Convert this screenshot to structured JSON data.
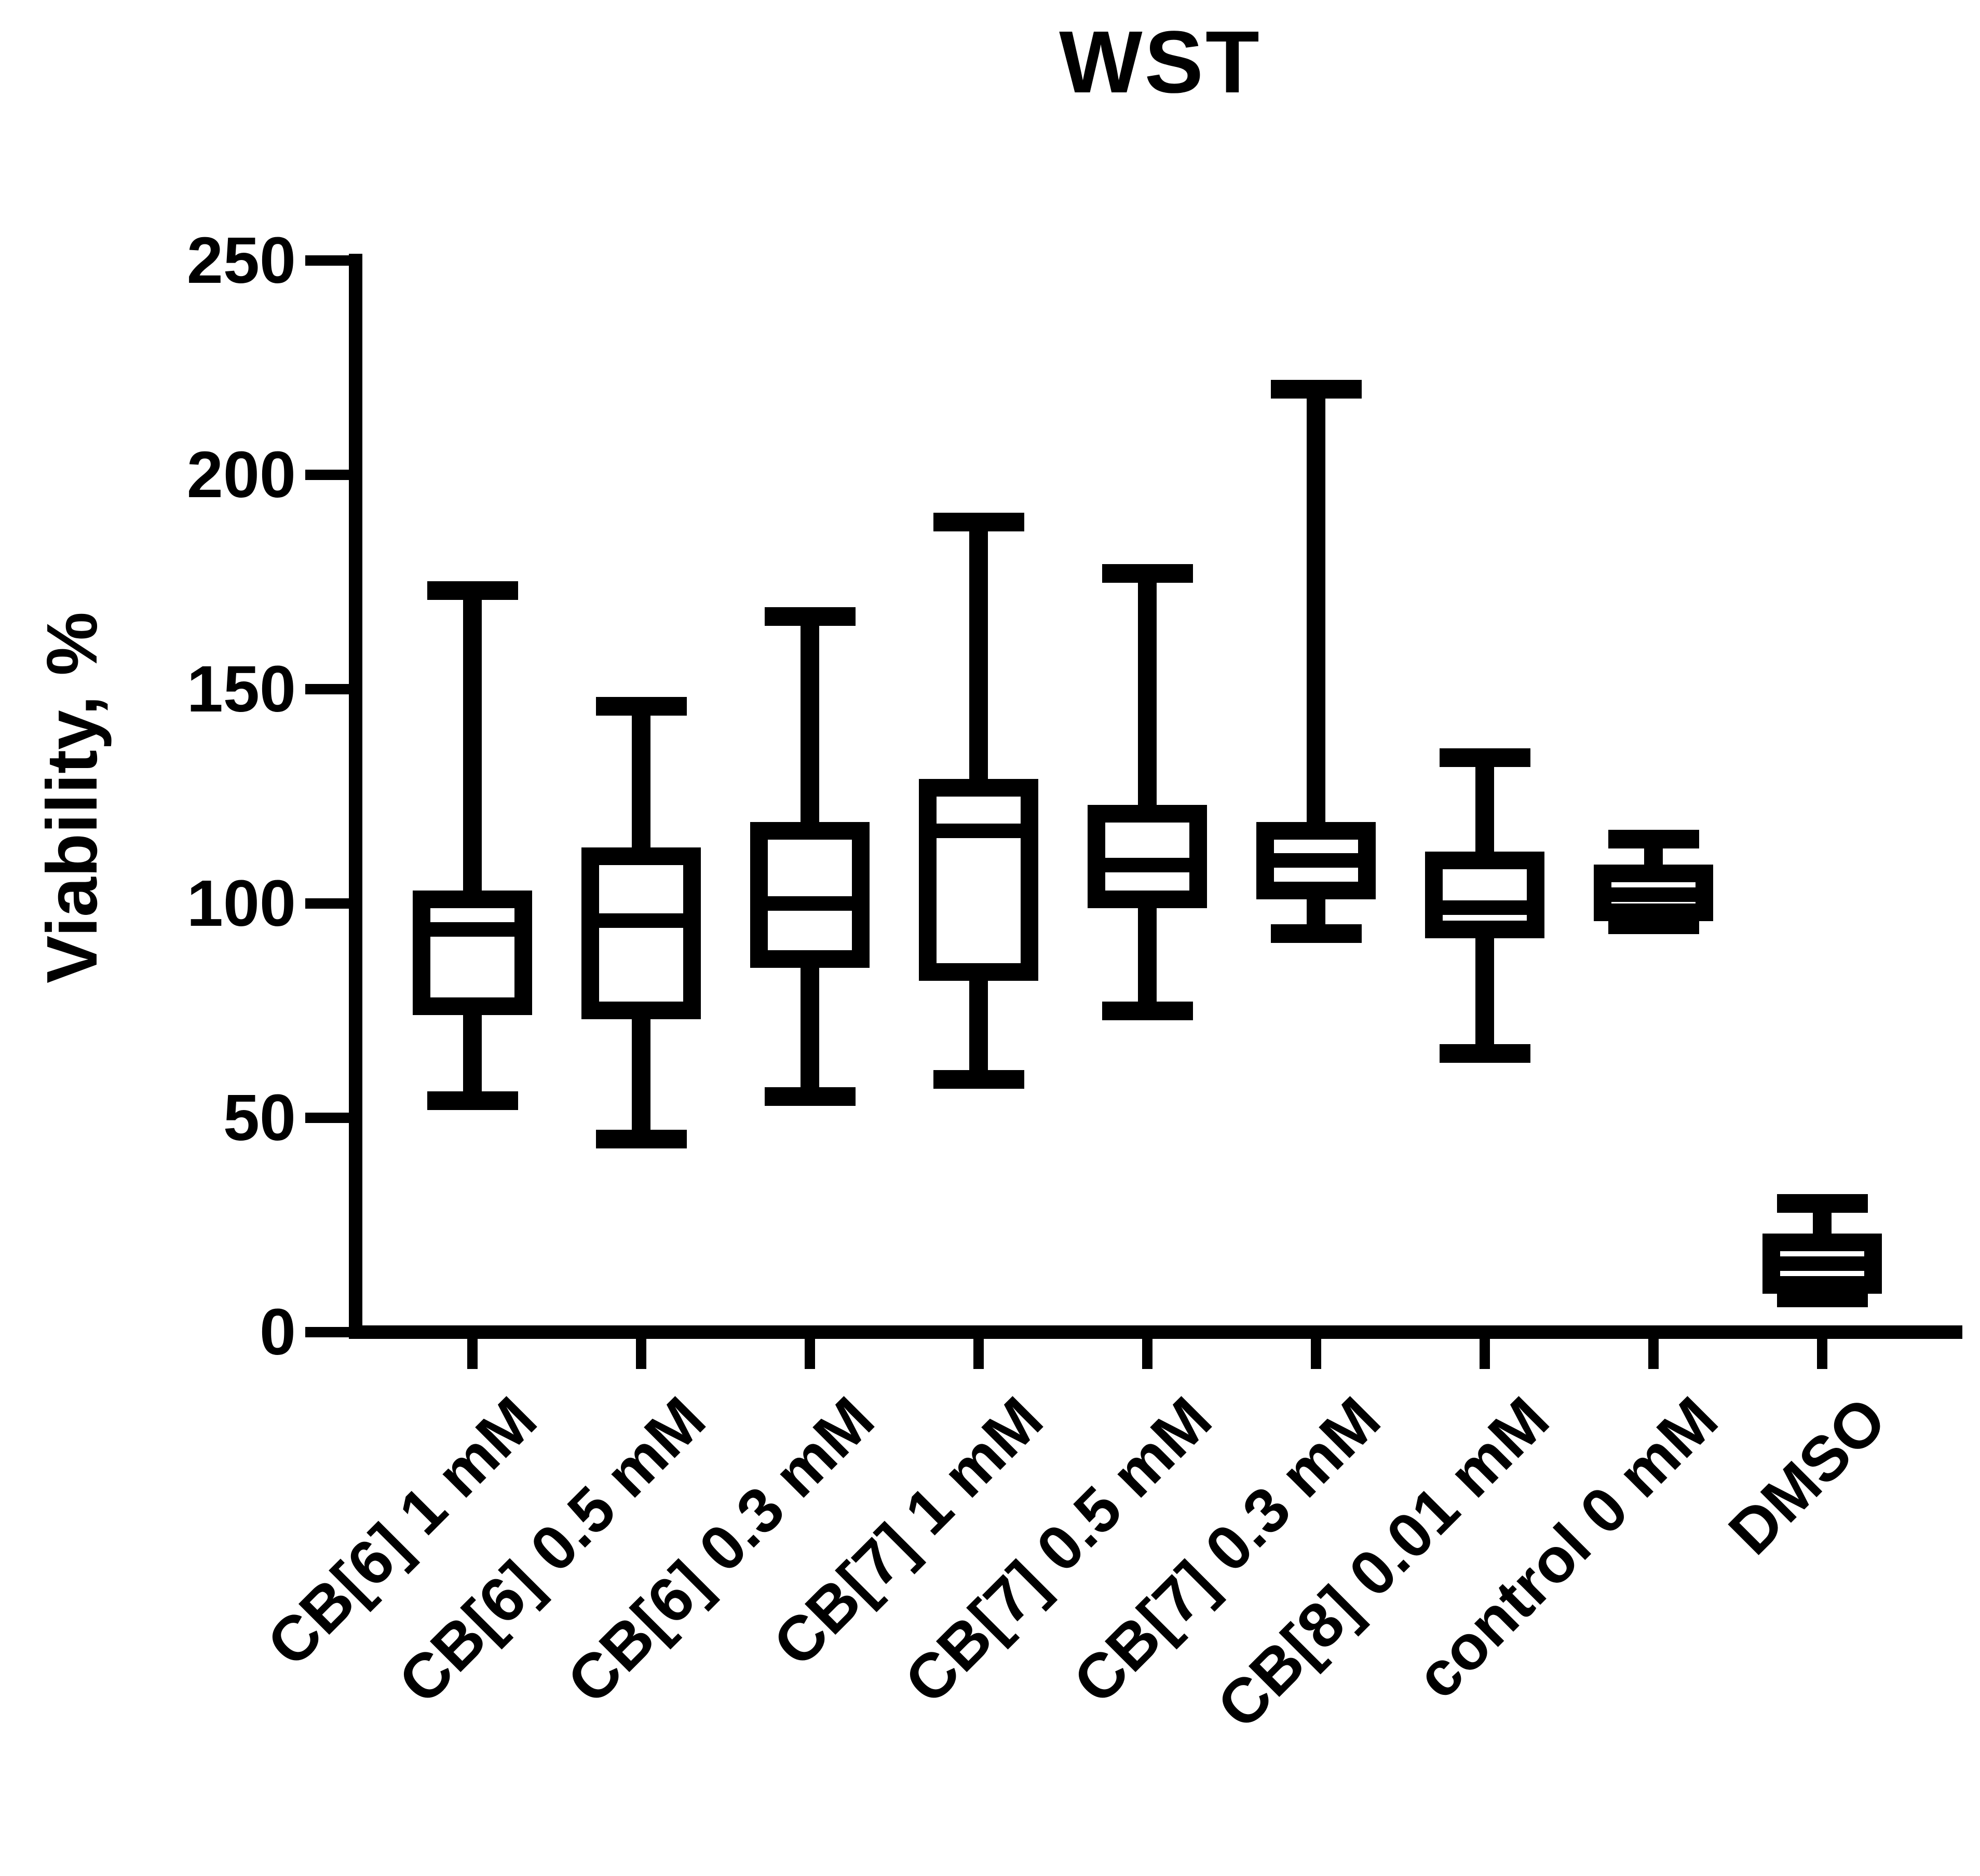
{
  "chart_data": {
    "type": "box",
    "title": "WST",
    "xlabel": "",
    "ylabel": "Viability, %",
    "ylim": [
      0,
      250
    ],
    "yticks": [
      0,
      50,
      100,
      150,
      200,
      250
    ],
    "grid": false,
    "legend": "none",
    "color": "#000000",
    "categories": [
      "CB[6] 1 mM",
      "CB[6] 0.5 mM",
      "CB[6] 0.3 mM",
      "CB[7] 1 mM",
      "CB[7] 0.5 mM",
      "CB[7] 0.3 mM",
      "CB[8] 0.01 mM",
      "control 0 mM",
      "DMSO"
    ],
    "series": [
      {
        "label": "CB[6] 1 mM",
        "min": 54,
        "q1": 76,
        "median": 94,
        "q3": 101,
        "max": 173
      },
      {
        "label": "CB[6] 0.5 mM",
        "min": 45,
        "q1": 75,
        "median": 96,
        "q3": 111,
        "max": 146
      },
      {
        "label": "CB[6] 0.3 mM",
        "min": 55,
        "q1": 87,
        "median": 100,
        "q3": 117,
        "max": 167
      },
      {
        "label": "CB[7] 1 mM",
        "min": 59,
        "q1": 84,
        "median": 117,
        "q3": 127,
        "max": 189
      },
      {
        "label": "CB[7] 0.5 mM",
        "min": 75,
        "q1": 101,
        "median": 109,
        "q3": 121,
        "max": 177
      },
      {
        "label": "CB[7] 0.3 mM",
        "min": 93,
        "q1": 103,
        "median": 110,
        "q3": 117,
        "max": 220
      },
      {
        "label": "CB[8] 0.01 mM",
        "min": 65,
        "q1": 94,
        "median": 99,
        "q3": 110,
        "max": 134
      },
      {
        "label": "control 0 mM",
        "min": 95,
        "q1": 98,
        "median": 102,
        "q3": 107,
        "max": 115
      },
      {
        "label": "DMSO",
        "min": 8,
        "q1": 11,
        "median": 16,
        "q3": 21,
        "max": 30
      }
    ]
  }
}
